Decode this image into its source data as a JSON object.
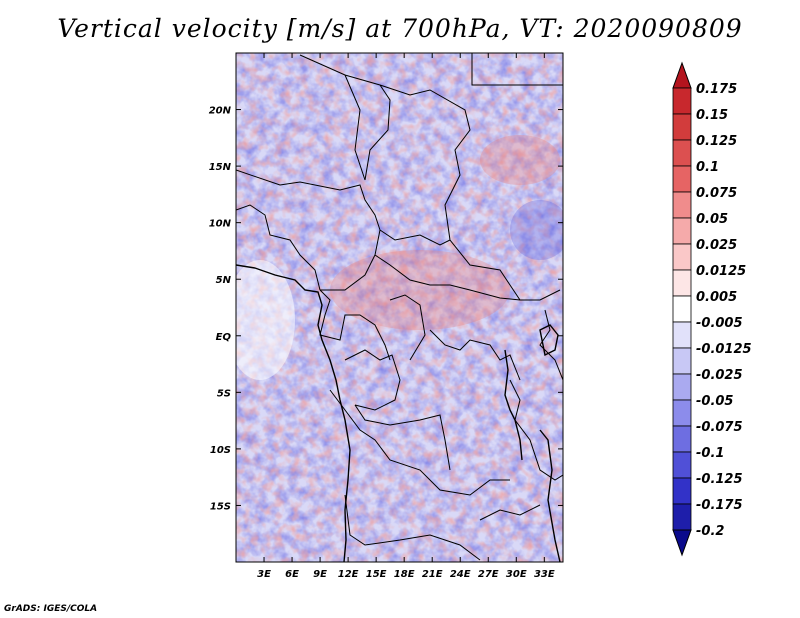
{
  "title": "Vertical velocity [m/s] at 700hPa, VT: 2020090809",
  "credit": "GrADS: IGES/COLA",
  "map": {
    "lon_range": [
      0,
      35
    ],
    "lat_range": [
      -20,
      25
    ],
    "lat_ticks": [
      {
        "value": 20,
        "label": "20N"
      },
      {
        "value": 15,
        "label": "15N"
      },
      {
        "value": 10,
        "label": "10N"
      },
      {
        "value": 5,
        "label": "5N"
      },
      {
        "value": 0,
        "label": "EQ"
      },
      {
        "value": -5,
        "label": "5S"
      },
      {
        "value": -10,
        "label": "10S"
      },
      {
        "value": -15,
        "label": "15S"
      }
    ],
    "lon_ticks": [
      {
        "value": 3,
        "label": "3E"
      },
      {
        "value": 6,
        "label": "6E"
      },
      {
        "value": 9,
        "label": "9E"
      },
      {
        "value": 12,
        "label": "12E"
      },
      {
        "value": 15,
        "label": "15E"
      },
      {
        "value": 18,
        "label": "18E"
      },
      {
        "value": 21,
        "label": "21E"
      },
      {
        "value": 24,
        "label": "24E"
      },
      {
        "value": 27,
        "label": "27E"
      },
      {
        "value": 30,
        "label": "30E"
      },
      {
        "value": 33,
        "label": "33E"
      }
    ]
  },
  "colorbar": {
    "levels": [
      "0.175",
      "0.15",
      "0.125",
      "0.1",
      "0.075",
      "0.05",
      "0.025",
      "0.0125",
      "0.005",
      "-0.005",
      "-0.0125",
      "-0.025",
      "-0.05",
      "-0.075",
      "-0.1",
      "-0.125",
      "-0.175",
      "-0.2"
    ],
    "colors": [
      "#b4141e",
      "#c8282d",
      "#d23c3c",
      "#dc5050",
      "#e66464",
      "#f08c8c",
      "#f5aaaa",
      "#fac8c8",
      "#fde6e6",
      "#ffffff",
      "#e1e1fa",
      "#c8c8f5",
      "#aaaaf0",
      "#8c8ceb",
      "#6e6ee1",
      "#5050d7",
      "#3232c8",
      "#1e1eaa",
      "#0a0a8c"
    ]
  }
}
